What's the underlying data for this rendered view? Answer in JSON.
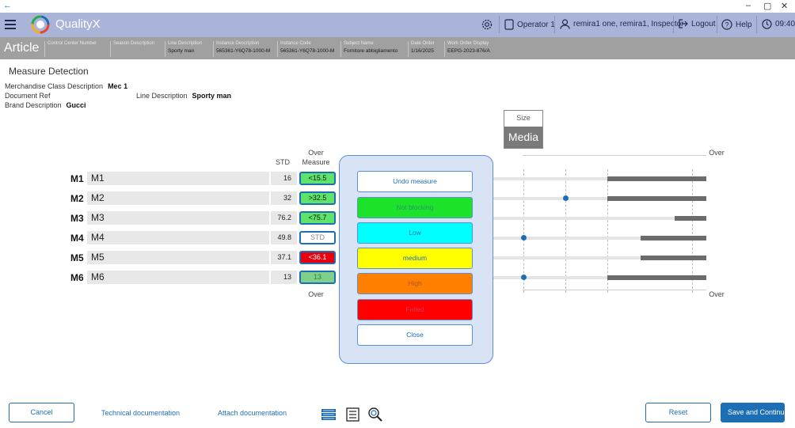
{
  "titlebar": {
    "back": "←",
    "minimize": "–",
    "restore": "▢",
    "close": "✕"
  },
  "header": {
    "brand": "QualityX",
    "operator": "Operator 1",
    "user": "remira1 one, remira1, Inspector",
    "logout": "Logout",
    "help": "Help",
    "time": "09:40",
    "colors": {
      "bar": "#a9b4d8",
      "accent": "#1d6fb5"
    }
  },
  "article": {
    "title": "Article",
    "columns": [
      {
        "label": "Control Center Number",
        "value": ""
      },
      {
        "label": "Season Description",
        "value": ""
      },
      {
        "label": "Line Description",
        "value": "Sporty man"
      },
      {
        "label": "Instance Description",
        "value": "565361-Y6Q78-1000-M"
      },
      {
        "label": "Instance Code",
        "value": "565361-Y6Q78-1000-M"
      },
      {
        "label": "Subject Name",
        "value": "Fornitore abbigliamento"
      },
      {
        "label": "Date Order",
        "value": "1/16/2025"
      },
      {
        "label": "Work Order Display",
        "value": "EEPG-2023-876/A"
      }
    ]
  },
  "page": {
    "title": "Measure Detection",
    "merch_label": "Merchandise Class Description",
    "merch_value": "Mec 1",
    "docref_label": "Document Ref",
    "line_label": "Line Description",
    "line_value": "Sporty man",
    "brand_label": "Brand Description",
    "brand_value": "Gucci"
  },
  "size": {
    "label": "Size",
    "value": "Media"
  },
  "table": {
    "std_header": "STD",
    "over_header": "Over",
    "measure_header": "Measure",
    "over_footer": "Over",
    "right_over_top": "Over",
    "right_over_bottom": "Over",
    "rows": [
      {
        "code": "M1",
        "name": "M1",
        "std": "16",
        "measure": "<15.5",
        "color": "#5ee36b",
        "text": "#111"
      },
      {
        "code": "M2",
        "name": "M2",
        "std": "32",
        "measure": ">32.5",
        "color": "#5ee36b",
        "text": "#111"
      },
      {
        "code": "M3",
        "name": "M3",
        "std": "76.2",
        "measure": "<75.7",
        "color": "#5ee36b",
        "text": "#111"
      },
      {
        "code": "M4",
        "name": "M4",
        "std": "49.8",
        "measure": "STD",
        "color": "#ffffff",
        "text": "#888"
      },
      {
        "code": "M5",
        "name": "M5",
        "std": "37.1",
        "measure": "<36.1",
        "color": "#e8000f",
        "text": "#ffffff"
      },
      {
        "code": "M6",
        "name": "M6",
        "std": "13",
        "measure": "13",
        "color": "#7fd08a",
        "text": "#2c8a3b"
      }
    ]
  },
  "popup": {
    "buttons": [
      {
        "label": "Undo measure",
        "bg": "#ffffff",
        "fg": "#1d6fb5"
      },
      {
        "label": "Not blocking",
        "bg": "#1de22a",
        "fg": "#1d9a6a"
      },
      {
        "label": "Low",
        "bg": "#00ffff",
        "fg": "#1d6fb5"
      },
      {
        "label": "medium",
        "bg": "#ffff00",
        "fg": "#1d6fb5"
      },
      {
        "label": "High",
        "bg": "#ff7f00",
        "fg": "#b35a20"
      },
      {
        "label": "Failed",
        "bg": "#ff0000",
        "fg": "#d03a5a"
      },
      {
        "label": "Close",
        "bg": "#ffffff",
        "fg": "#1d6fb5"
      }
    ]
  },
  "footer": {
    "cancel": "Cancel",
    "tech_doc": "Technical documentation",
    "attach_doc": "Attach documentation",
    "reset": "Reset",
    "save": "Save and Continue"
  }
}
